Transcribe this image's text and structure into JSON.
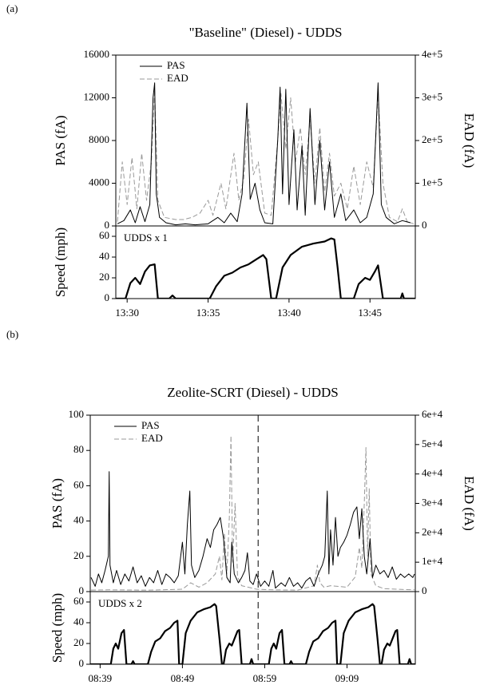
{
  "chart_data": [
    {
      "type": "line",
      "panel_label": "(a)",
      "title": "\"Baseline\" (Diesel) - UDDS",
      "ylabel": "PAS (fA)",
      "y2label": "EAD (fA)",
      "legend": "upper left",
      "xlim": [
        809.3,
        827.8
      ],
      "ylim": [
        0,
        16000
      ],
      "yticks": [
        0,
        4000,
        8000,
        12000,
        16000
      ],
      "y2lim": [
        0,
        400000
      ],
      "y2ticks": [
        0,
        {
          "value": 100000,
          "label": "1e+5"
        },
        {
          "value": 200000,
          "label": "2e+5"
        },
        {
          "value": 300000,
          "label": "3e+5"
        },
        {
          "value": 400000,
          "label": "4e+5"
        }
      ],
      "series": [
        {
          "name": "PAS",
          "color": "#000000",
          "x": [
            809.4,
            809.8,
            810.2,
            810.5,
            810.8,
            811.1,
            811.4,
            811.6,
            811.7,
            811.8,
            812.0,
            812.4,
            813.0,
            813.6,
            814.2,
            815.0,
            815.6,
            816.0,
            816.4,
            816.8,
            817.1,
            817.4,
            817.6,
            817.9,
            818.2,
            818.5,
            819.0,
            819.3,
            819.45,
            819.6,
            819.8,
            820.0,
            820.3,
            820.5,
            820.8,
            821.0,
            821.3,
            821.6,
            821.9,
            822.2,
            822.5,
            822.8,
            823.2,
            823.5,
            824.0,
            824.4,
            824.8,
            825.2,
            825.5,
            825.7,
            826.0,
            826.5,
            827.0,
            827.5
          ],
          "values": [
            200,
            500,
            1500,
            300,
            1800,
            400,
            2000,
            12000,
            13400,
            3000,
            800,
            300,
            100,
            200,
            100,
            200,
            800,
            300,
            1200,
            400,
            3000,
            11500,
            2500,
            4000,
            1500,
            300,
            200,
            8000,
            13000,
            3000,
            12800,
            2000,
            9000,
            1500,
            7500,
            1000,
            11000,
            2000,
            8000,
            1500,
            6000,
            800,
            3000,
            500,
            1500,
            300,
            800,
            3000,
            13400,
            2000,
            800,
            200,
            500,
            300
          ]
        },
        {
          "name": "EAD",
          "color": "#999999",
          "dashed": true,
          "axis": "y2",
          "x": [
            809.4,
            809.7,
            810.0,
            810.3,
            810.6,
            810.9,
            811.2,
            811.5,
            811.7,
            811.9,
            812.3,
            813.0,
            813.5,
            814.0,
            814.5,
            815.0,
            815.3,
            815.8,
            816.1,
            816.6,
            816.9,
            817.2,
            817.5,
            817.8,
            818.1,
            818.5,
            818.9,
            819.3,
            819.5,
            819.8,
            820.1,
            820.4,
            820.7,
            821.0,
            821.3,
            821.6,
            821.9,
            822.2,
            822.5,
            822.8,
            823.2,
            823.6,
            824.0,
            824.4,
            824.8,
            825.2,
            825.5,
            825.8,
            826.2,
            826.7,
            827.0,
            827.3,
            827.7
          ],
          "values": [
            10000,
            150000,
            50000,
            160000,
            40000,
            170000,
            60000,
            150000,
            320000,
            60000,
            20000,
            15000,
            15000,
            20000,
            30000,
            60000,
            25000,
            100000,
            40000,
            170000,
            60000,
            110000,
            250000,
            120000,
            150000,
            30000,
            25000,
            200000,
            310000,
            180000,
            300000,
            150000,
            230000,
            120000,
            250000,
            100000,
            230000,
            80000,
            170000,
            70000,
            100000,
            40000,
            140000,
            50000,
            150000,
            90000,
            310000,
            100000,
            20000,
            10000,
            40000,
            10000,
            5000
          ]
        }
      ]
    },
    {
      "type": "line",
      "ylabel": "Speed (mph)",
      "annotation": "UDDS x 1",
      "xlim": [
        809.3,
        827.8
      ],
      "xticks": [
        {
          "value": 810,
          "label": "13:30"
        },
        {
          "value": 815,
          "label": "13:35"
        },
        {
          "value": 820,
          "label": "13:40"
        },
        {
          "value": 825,
          "label": "13:45"
        }
      ],
      "ylim": [
        0,
        70
      ],
      "yticks": [
        0,
        20,
        40,
        60
      ],
      "series": [
        {
          "color": "#000000",
          "x": [
            809.3,
            809.9,
            810.2,
            810.5,
            810.8,
            811.1,
            811.4,
            811.7,
            811.9,
            812.6,
            812.8,
            813.0,
            815.1,
            815.5,
            816.0,
            816.5,
            817.0,
            817.5,
            818.0,
            818.4,
            818.6,
            818.9,
            819.2,
            819.6,
            820.1,
            820.8,
            821.5,
            822.2,
            822.6,
            822.8,
            823.0,
            823.2,
            824.0,
            824.3,
            824.7,
            825.0,
            825.3,
            825.5,
            825.8,
            826.9,
            827.0,
            827.1,
            827.8
          ],
          "values": [
            0,
            0,
            15,
            20,
            14,
            26,
            32,
            33,
            0,
            0,
            3,
            0,
            0,
            12,
            22,
            25,
            30,
            33,
            38,
            42,
            38,
            0,
            0,
            30,
            42,
            50,
            53,
            55,
            58,
            57,
            30,
            0,
            0,
            14,
            20,
            18,
            26,
            32,
            0,
            0,
            5,
            0,
            0
          ]
        }
      ]
    },
    {
      "type": "line",
      "panel_label": "(b)",
      "title": "Zeolite-SCRT (Diesel) - UDDS",
      "ylabel": "PAS (fA)",
      "y2label": "EAD (fA)",
      "legend": "upper left",
      "vline": 538.2,
      "xlim": [
        517.8,
        557.3
      ],
      "ylim": [
        0,
        100
      ],
      "yticks": [
        0,
        20,
        40,
        60,
        80,
        100
      ],
      "y2lim": [
        0,
        60000
      ],
      "y2ticks": [
        0,
        {
          "value": 10000,
          "label": "1e+4"
        },
        {
          "value": 20000,
          "label": "2e+4"
        },
        {
          "value": 30000,
          "label": "3e+4"
        },
        {
          "value": 40000,
          "label": "4e+4"
        },
        {
          "value": 50000,
          "label": "5e+4"
        },
        {
          "value": 60000,
          "label": "6e+4"
        }
      ],
      "series": [
        {
          "name": "PAS",
          "color": "#000000",
          "x": [
            517.9,
            518.4,
            518.8,
            519.2,
            519.6,
            520.0,
            520.1,
            520.2,
            520.6,
            521.0,
            521.5,
            522.0,
            522.5,
            523.0,
            523.5,
            524.0,
            524.5,
            525.0,
            525.5,
            526.0,
            526.5,
            527.0,
            527.5,
            528.0,
            528.5,
            529.0,
            529.3,
            529.6,
            529.9,
            530.1,
            530.5,
            531.0,
            531.5,
            532.0,
            532.4,
            532.8,
            533.2,
            533.6,
            534.0,
            534.4,
            534.8,
            535.0,
            535.3,
            535.8,
            536.2,
            536.6,
            536.9,
            537.2,
            537.6,
            538.0,
            538.5,
            539.0,
            539.5,
            540.0,
            540.3,
            541.0,
            541.5,
            542.0,
            542.5,
            543.0,
            543.5,
            544.0,
            544.5,
            545.0,
            545.5,
            546.0,
            546.3,
            546.6,
            546.8,
            547.0,
            547.3,
            547.6,
            547.9,
            548.2,
            548.6,
            549.0,
            549.4,
            549.8,
            550.2,
            550.5,
            550.8,
            551.1,
            551.4,
            551.8,
            552.1,
            552.5,
            553.0,
            553.5,
            554.0,
            554.5,
            555.0,
            555.5,
            556.0,
            556.5,
            557.0,
            557.2
          ],
          "values": [
            8,
            3,
            10,
            5,
            12,
            20,
            68,
            15,
            5,
            12,
            4,
            10,
            6,
            14,
            5,
            9,
            3,
            8,
            5,
            12,
            4,
            10,
            8,
            5,
            9,
            28,
            10,
            38,
            57,
            15,
            8,
            12,
            20,
            30,
            25,
            35,
            38,
            42,
            30,
            8,
            5,
            28,
            10,
            5,
            8,
            12,
            22,
            6,
            4,
            10,
            3,
            6,
            3,
            12,
            2,
            5,
            3,
            8,
            3,
            5,
            2,
            6,
            8,
            3,
            10,
            15,
            20,
            57,
            10,
            35,
            15,
            42,
            20,
            25,
            28,
            32,
            38,
            45,
            48,
            30,
            47,
            20,
            10,
            30,
            8,
            15,
            10,
            12,
            8,
            14,
            7,
            10,
            8,
            10,
            8,
            10
          ]
        },
        {
          "name": "EAD",
          "color": "#999999",
          "dashed": true,
          "axis": "y2",
          "x": [
            517.9,
            520.0,
            525.0,
            529.0,
            530.0,
            531.0,
            532.0,
            533.0,
            533.5,
            533.8,
            534.1,
            534.4,
            534.7,
            534.9,
            535.1,
            535.4,
            535.7,
            536.2,
            537.0,
            538.0,
            540.0,
            543.0,
            545.0,
            545.4,
            545.7,
            546.2,
            547.0,
            549.0,
            550.0,
            550.5,
            550.8,
            551.1,
            551.3,
            551.5,
            551.7,
            551.9,
            552.5,
            553.5,
            555.0,
            557.2
          ],
          "values": [
            500,
            600,
            500,
            800,
            3000,
            1500,
            3000,
            6000,
            12000,
            4000,
            20000,
            6000,
            25000,
            53000,
            10000,
            30000,
            5000,
            2000,
            1500,
            800,
            600,
            500,
            2000,
            9000,
            3000,
            1500,
            2000,
            1500,
            5000,
            15000,
            8000,
            30000,
            49000,
            12000,
            35000,
            6000,
            2000,
            1000,
            800,
            600
          ]
        }
      ]
    },
    {
      "type": "line",
      "ylabel": "Speed (mph)",
      "annotation": "UDDS x 2",
      "vline": 538.2,
      "xlim": [
        517.8,
        557.3
      ],
      "xticks": [
        {
          "value": 519,
          "label": "08:39"
        },
        {
          "value": 529,
          "label": "08:49"
        },
        {
          "value": 539,
          "label": "08:59"
        },
        {
          "value": 549,
          "label": "09:09"
        }
      ],
      "ylim": [
        0,
        70
      ],
      "yticks": [
        0,
        20,
        40,
        60
      ],
      "series": [
        {
          "color": "#000000",
          "x": [
            517.8,
            518.5,
            520.3,
            520.6,
            520.9,
            521.2,
            521.6,
            521.9,
            522.2,
            522.8,
            523.0,
            523.2,
            524.8,
            525.2,
            525.7,
            526.3,
            526.9,
            527.5,
            528.0,
            528.4,
            528.6,
            529.0,
            529.4,
            530.0,
            530.8,
            531.6,
            532.4,
            532.9,
            533.1,
            533.5,
            533.8,
            534.0,
            534.3,
            534.7,
            535.0,
            535.4,
            535.7,
            535.9,
            536.2,
            537.2,
            537.4,
            537.6,
            539.5,
            539.8,
            540.1,
            540.4,
            540.8,
            541.1,
            541.4,
            542.0,
            542.2,
            542.4,
            544.0,
            544.4,
            544.9,
            545.5,
            546.1,
            546.7,
            547.2,
            547.6,
            547.8,
            548.2,
            548.6,
            549.2,
            550.0,
            550.8,
            551.6,
            552.1,
            552.3,
            552.7,
            553.0,
            553.2,
            553.5,
            553.9,
            554.2,
            554.6,
            554.9,
            555.1,
            555.4,
            556.4,
            556.6,
            556.8,
            557.3
          ],
          "values": [
            0,
            0,
            0,
            15,
            20,
            15,
            30,
            33,
            0,
            0,
            3,
            0,
            0,
            12,
            22,
            25,
            32,
            35,
            40,
            42,
            0,
            0,
            30,
            42,
            50,
            53,
            55,
            58,
            56,
            25,
            0,
            0,
            14,
            20,
            18,
            26,
            32,
            33,
            0,
            0,
            5,
            0,
            0,
            15,
            20,
            15,
            30,
            33,
            0,
            0,
            3,
            0,
            0,
            12,
            22,
            25,
            32,
            35,
            40,
            42,
            0,
            0,
            30,
            42,
            50,
            53,
            55,
            58,
            56,
            25,
            0,
            0,
            14,
            20,
            18,
            26,
            32,
            33,
            0,
            0,
            5,
            0,
            0
          ]
        }
      ]
    }
  ]
}
